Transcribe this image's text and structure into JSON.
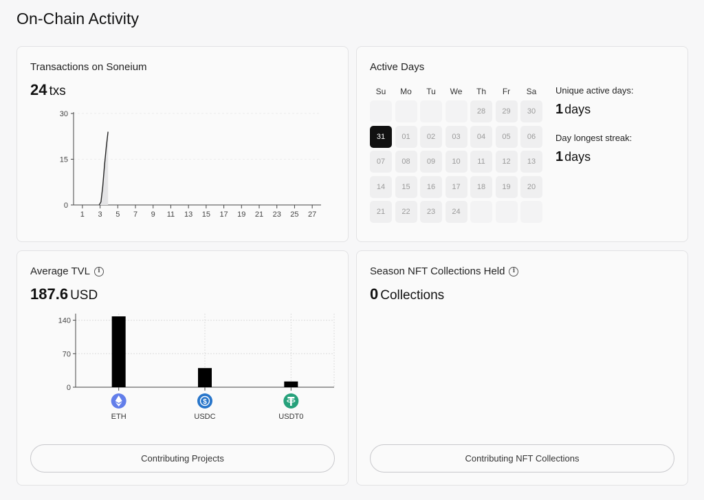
{
  "page": {
    "title": "On-Chain Activity"
  },
  "transactions": {
    "title": "Transactions on Soneium",
    "value": "24",
    "unit": "txs",
    "chart_data": {
      "type": "area",
      "x_ticks": [
        "1",
        "3",
        "5",
        "7",
        "9",
        "11",
        "13",
        "15",
        "17",
        "19",
        "21",
        "23",
        "25",
        "27"
      ],
      "y_ticks": [
        "0",
        "15",
        "30"
      ],
      "xlim": [
        0,
        28
      ],
      "ylim": [
        0,
        30
      ],
      "x": [
        2.9,
        3.1,
        3.3,
        3.5,
        3.7,
        3.9
      ],
      "values": [
        0,
        1,
        6,
        13,
        19,
        24
      ]
    }
  },
  "active_days": {
    "title": "Active Days",
    "weekdays": [
      "Su",
      "Mo",
      "Tu",
      "We",
      "Th",
      "Fr",
      "Sa"
    ],
    "weeks": [
      [
        "",
        "",
        "",
        "",
        "28",
        "29",
        "30"
      ],
      [
        "31",
        "01",
        "02",
        "03",
        "04",
        "05",
        "06"
      ],
      [
        "07",
        "08",
        "09",
        "10",
        "11",
        "12",
        "13"
      ],
      [
        "14",
        "15",
        "16",
        "17",
        "18",
        "19",
        "20"
      ],
      [
        "21",
        "22",
        "23",
        "24",
        "",
        "",
        ""
      ]
    ],
    "active_day": "31",
    "unique_label": "Unique active days:",
    "unique_value": "1",
    "unique_unit": "days",
    "streak_label": "Day longest streak:",
    "streak_value": "1",
    "streak_unit": "days"
  },
  "tvl": {
    "title": "Average TVL",
    "value": "187.6",
    "unit": "USD",
    "button_label": "Contributing Projects",
    "chart_data": {
      "type": "bar",
      "categories": [
        "ETH",
        "USDC",
        "USDT0"
      ],
      "values": [
        148,
        40,
        12
      ],
      "y_ticks": [
        "0",
        "70",
        "140"
      ],
      "ylim": [
        0,
        148
      ],
      "token_colors": [
        "#627eea",
        "#2775ca",
        "#26a17b"
      ],
      "token_icons": [
        "eth-icon",
        "usdc-icon",
        "usdt0-icon"
      ]
    }
  },
  "nft": {
    "title": "Season NFT Collections Held",
    "value": "0",
    "unit": "Collections",
    "button_label": "Contributing NFT Collections"
  }
}
